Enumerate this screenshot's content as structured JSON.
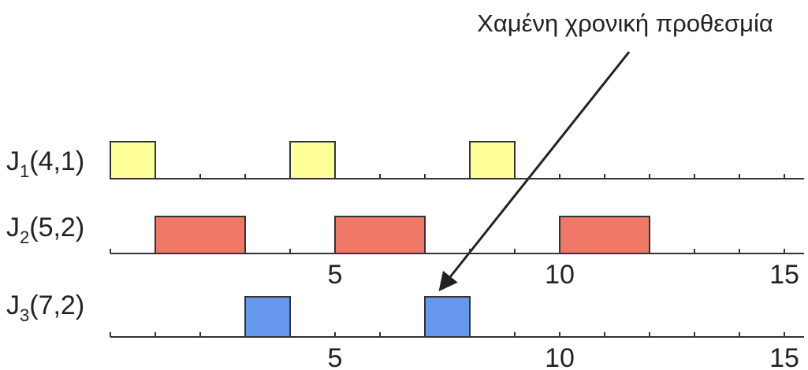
{
  "annotation": {
    "text": "Χαμένη χρονική προθεσμία",
    "points_to": {
      "job": 2,
      "time": 7
    }
  },
  "time_axis": {
    "min": 0,
    "max": 15,
    "tick_step": 1
  },
  "jobs": [
    {
      "name": "J",
      "index": "1",
      "params": "(4,1)",
      "period": 4,
      "cost": 1,
      "color": "#ffff99",
      "blocks": [
        {
          "start": 0,
          "end": 1
        },
        {
          "start": 4,
          "end": 5
        },
        {
          "start": 8,
          "end": 9
        }
      ],
      "axis_labels": []
    },
    {
      "name": "J",
      "index": "2",
      "params": "(5,2)",
      "period": 5,
      "cost": 2,
      "color": "#ee7766",
      "blocks": [
        {
          "start": 1,
          "end": 3
        },
        {
          "start": 5,
          "end": 7
        },
        {
          "start": 10,
          "end": 12
        }
      ],
      "axis_labels": [
        {
          "value": 5,
          "text": "5"
        },
        {
          "value": 10,
          "text": "10"
        },
        {
          "value": 15,
          "text": "15"
        }
      ]
    },
    {
      "name": "J",
      "index": "3",
      "params": "(7,2)",
      "period": 7,
      "cost": 2,
      "color": "#6699ee",
      "blocks": [
        {
          "start": 3,
          "end": 4
        },
        {
          "start": 7,
          "end": 8
        }
      ],
      "axis_labels": [
        {
          "value": 5,
          "text": "5"
        },
        {
          "value": 10,
          "text": "10"
        },
        {
          "value": 15,
          "text": "15"
        }
      ]
    }
  ]
}
